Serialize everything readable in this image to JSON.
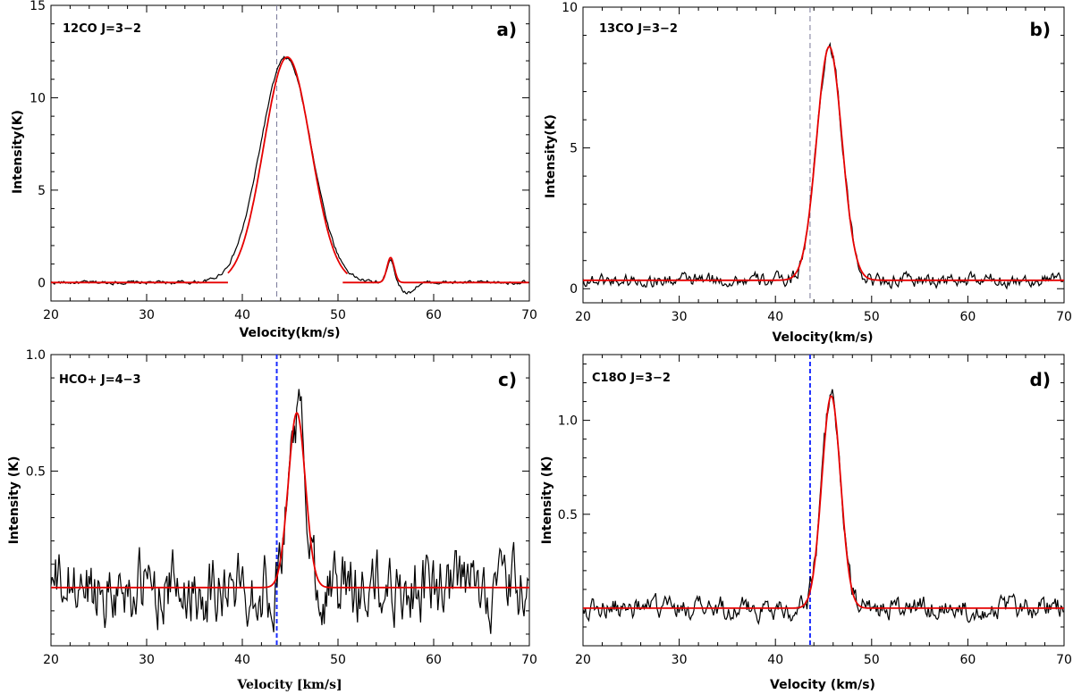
{
  "figure": {
    "description": "Four molecular line spectra, intensity vs velocity"
  },
  "colors": {
    "observed": "#000000",
    "fit": "#e60000",
    "fit_dark": "#cc1010",
    "vline_gray": "#7a7a9a",
    "vline_blue": "#1a2cff"
  },
  "chart_data": [
    {
      "id": "a",
      "type": "line",
      "title": "12CO J=3−2",
      "panel_letter": "a)",
      "xlabel": "Velocity(km/s)",
      "ylabel": "Intensity(K)",
      "xlim": [
        20,
        70
      ],
      "ylim": [
        -1,
        15
      ],
      "xticks": [
        20,
        30,
        40,
        50,
        60,
        70
      ],
      "yticks": [
        0,
        5,
        10,
        15
      ],
      "vline": {
        "x": 43.6,
        "style": "dashed",
        "color": "gray"
      },
      "fit_gaussians": [
        {
          "amp": 12.2,
          "center": 44.7,
          "fwhm": 5.8,
          "range": [
            38.5,
            51
          ]
        },
        {
          "amp": 1.35,
          "center": 55.5,
          "fwhm": 0.9,
          "range": [
            50.5,
            70
          ]
        }
      ],
      "observed_components": [
        {
          "amp": 12.15,
          "center": 44.55,
          "fwhm": 6.3
        },
        {
          "amp": 1.3,
          "center": 55.5,
          "fwhm": 0.9
        },
        {
          "amp": -0.55,
          "center": 57.3,
          "fwhm": 1.6
        }
      ],
      "noise_amplitude": 0.07,
      "fit_segments": "separate"
    },
    {
      "id": "b",
      "type": "line",
      "title": "13CO J=3−2",
      "panel_letter": "b)",
      "xlabel": "Velocity(km/s)",
      "ylabel": "Intensity(K)",
      "xlim": [
        20,
        70
      ],
      "ylim": [
        -0.5,
        10
      ],
      "xticks": [
        20,
        30,
        40,
        50,
        60,
        70
      ],
      "yticks": [
        0,
        5,
        10
      ],
      "vline": {
        "x": 43.6,
        "style": "dashed",
        "color": "gray"
      },
      "baseline": 0.3,
      "fit_gaussians": [
        {
          "amp": 8.3,
          "center": 45.6,
          "fwhm": 3.1,
          "range": [
            20,
            70
          ]
        }
      ],
      "observed_components": [
        {
          "amp": 8.3,
          "center": 45.6,
          "fwhm": 3.1
        }
      ],
      "noise_amplitude": 0.18
    },
    {
      "id": "c",
      "type": "line",
      "title": "HCO+ J=4−3",
      "panel_letter": "c)",
      "xlabel": "Velocity [km/s]",
      "ylabel": "Intensity (K)",
      "xlim": [
        20,
        70
      ],
      "ylim": [
        -0.25,
        1.0
      ],
      "xticks": [
        20,
        30,
        40,
        50,
        60,
        70
      ],
      "yticks": [
        0.5,
        1.0
      ],
      "ytick_labels": [
        "0.5",
        "1.0"
      ],
      "vline": {
        "x": 43.6,
        "style": "dashed",
        "color": "blue"
      },
      "baseline": 0.0,
      "fit_gaussians": [
        {
          "amp": 0.75,
          "center": 45.7,
          "fwhm": 2.1,
          "range": [
            20,
            70
          ]
        }
      ],
      "observed_components": [
        {
          "amp": 0.75,
          "center": 45.7,
          "fwhm": 2.1
        }
      ],
      "noise_amplitude": 0.11
    },
    {
      "id": "d",
      "type": "line",
      "title": "C18O J=3−2",
      "panel_letter": "d)",
      "xlabel": "Velocity (km/s)",
      "ylabel": "Intensity (K)",
      "xlim": [
        20,
        70
      ],
      "ylim": [
        -0.2,
        1.35
      ],
      "xticks": [
        20,
        30,
        40,
        50,
        60,
        70
      ],
      "yticks": [
        0.5,
        1.0
      ],
      "ytick_labels": [
        "0.5",
        "1.0"
      ],
      "vline": {
        "x": 43.6,
        "style": "dashed",
        "color": "blue"
      },
      "baseline": 0.0,
      "fit_gaussians": [
        {
          "amp": 1.13,
          "center": 45.8,
          "fwhm": 2.3,
          "range": [
            20,
            70
          ]
        }
      ],
      "observed_components": [
        {
          "amp": 1.13,
          "center": 45.8,
          "fwhm": 2.3
        }
      ],
      "noise_amplitude": 0.045
    }
  ]
}
